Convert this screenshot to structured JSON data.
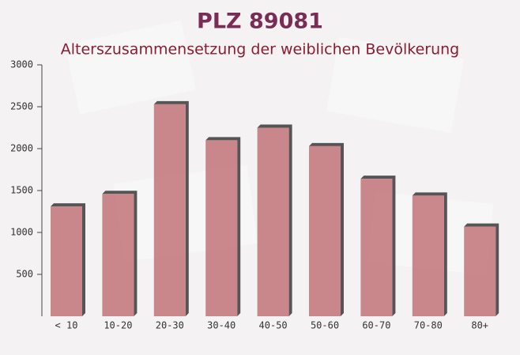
{
  "chart_data": {
    "type": "bar",
    "title": "PLZ 89081",
    "subtitle": "Alterszusammensetzung der weiblichen Bevölkerung",
    "categories": [
      "< 10",
      "10-20",
      "20-30",
      "30-40",
      "40-50",
      "50-60",
      "60-70",
      "70-80",
      "80+"
    ],
    "values": [
      1310,
      1460,
      2530,
      2100,
      2250,
      2030,
      1640,
      1440,
      1070
    ],
    "color": "#c27479",
    "ylim": [
      0,
      3000
    ],
    "yticks": [
      500,
      1000,
      1500,
      2000,
      2500,
      3000
    ],
    "grid": false
  }
}
